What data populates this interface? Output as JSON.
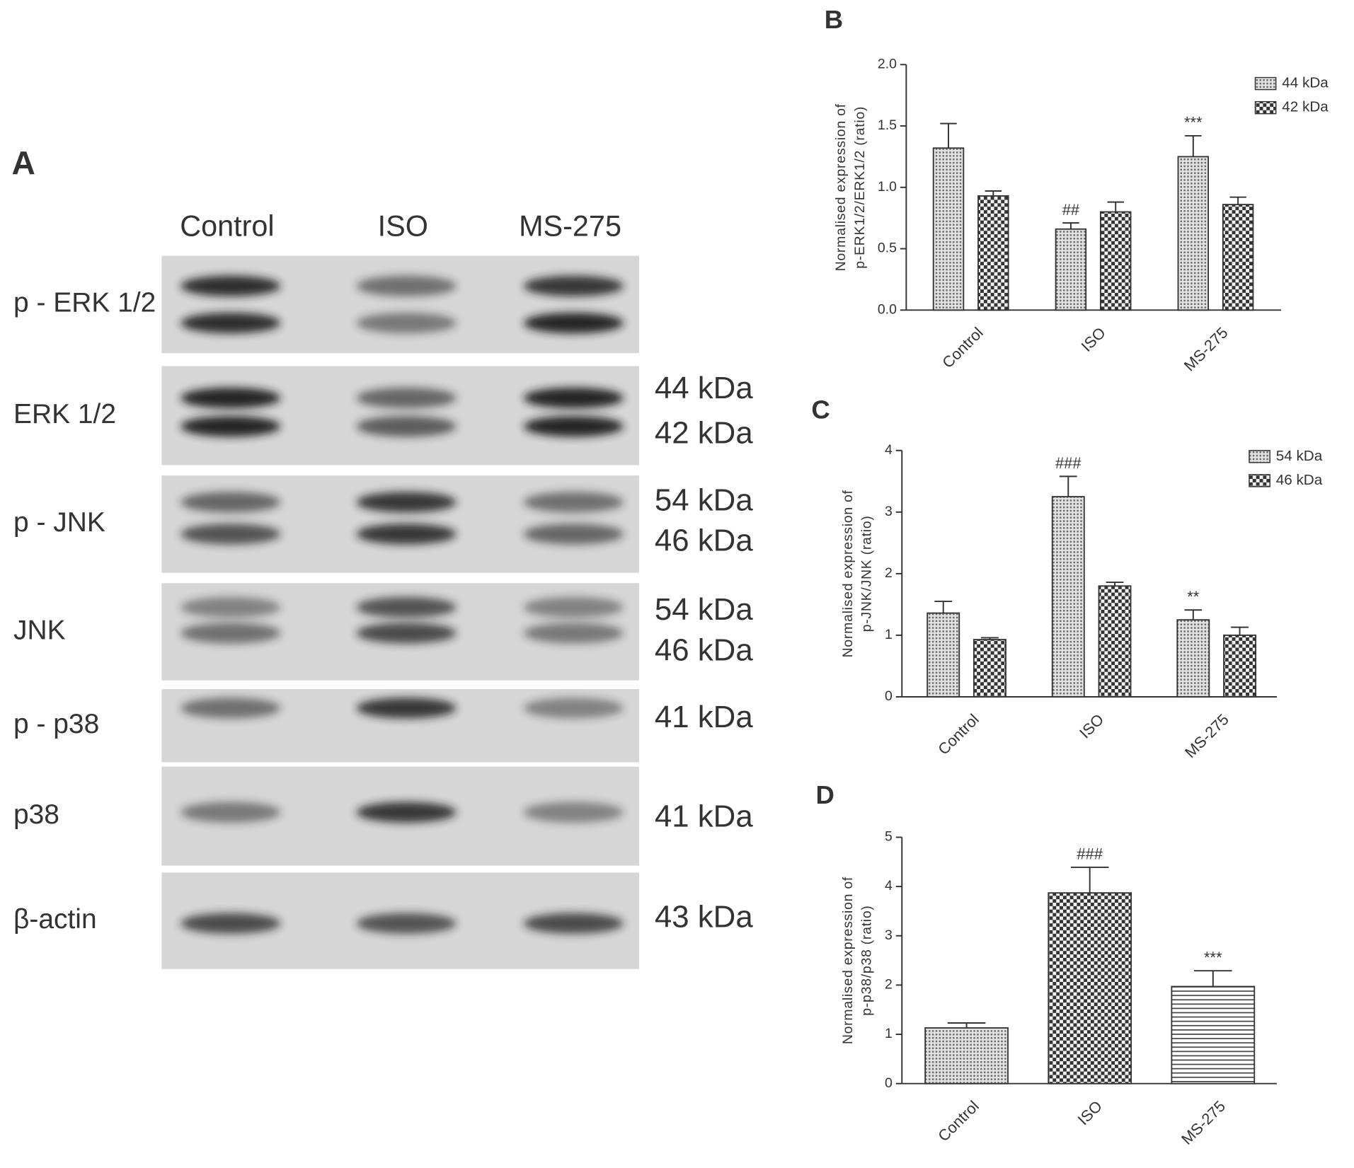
{
  "panel_a": {
    "label": "A",
    "lanes": [
      "Control",
      "ISO",
      "MS-275"
    ],
    "rows": [
      "p - ERK 1/2",
      "ERK 1/2",
      "p - JNK",
      "JNK",
      "p - p38",
      "p38",
      "β-actin"
    ],
    "sizes": [
      "44 kDa",
      "42 kDa",
      "54 kDa",
      "46 kDa",
      "54 kDa",
      "46 kDa",
      "41 kDa",
      "41 kDa",
      "43 kDa"
    ]
  },
  "chart_data": [
    {
      "type": "bar",
      "label": "B",
      "y_label": [
        "Normalised expression of",
        "p-ERK1/2/ERK1/2 (ratio)"
      ],
      "categories": [
        "Control",
        "ISO",
        "MS-275"
      ],
      "series": [
        {
          "name": "44 kDa",
          "pattern": "dots",
          "values": [
            1.32,
            0.66,
            1.25
          ],
          "errors": [
            0.2,
            0.05,
            0.17
          ],
          "annotations": [
            null,
            "##",
            "***"
          ]
        },
        {
          "name": "42 kDa",
          "pattern": "checker",
          "values": [
            0.93,
            0.8,
            0.86
          ],
          "errors": [
            0.04,
            0.08,
            0.06
          ],
          "annotations": [
            null,
            null,
            null
          ]
        }
      ],
      "ylim": [
        0,
        2
      ],
      "yticks": [
        {
          "value": 0,
          "label": "0.0"
        },
        0.5,
        {
          "value": 1,
          "label": "1.0"
        },
        1.5,
        {
          "value": 2,
          "label": "2.0"
        }
      ],
      "legend": "top-right"
    },
    {
      "type": "bar",
      "label": "C",
      "y_label": [
        "Normalised expression of",
        "p-JNK/JNK (ratio)"
      ],
      "categories": [
        "Control",
        "ISO",
        "MS-275"
      ],
      "series": [
        {
          "name": "54 kDa",
          "pattern": "dots",
          "values": [
            1.36,
            3.25,
            1.25
          ],
          "errors": [
            0.19,
            0.33,
            0.16
          ],
          "annotations": [
            null,
            "###",
            "**"
          ]
        },
        {
          "name": "46 kDa",
          "pattern": "checker",
          "values": [
            0.93,
            1.8,
            1.0
          ],
          "errors": [
            0.03,
            0.06,
            0.13
          ],
          "annotations": [
            null,
            null,
            null
          ]
        }
      ],
      "ylim": [
        0,
        4
      ],
      "yticks": [
        0,
        1,
        2,
        3,
        4
      ],
      "legend": "top-right"
    },
    {
      "type": "bar",
      "label": "D",
      "y_label": [
        "Normalised expression of",
        "p-p38/p38 (ratio)"
      ],
      "categories": [
        "Control",
        "ISO",
        "MS-275"
      ],
      "values": [
        1.13,
        3.87,
        1.97
      ],
      "errors": [
        0.1,
        0.52,
        0.32
      ],
      "annotations": [
        null,
        "###",
        "***"
      ],
      "patterns": [
        "dots",
        "checker",
        "hlines"
      ],
      "ylim": [
        0,
        5
      ],
      "yticks": [
        0,
        1,
        2,
        3,
        4,
        5
      ]
    }
  ]
}
